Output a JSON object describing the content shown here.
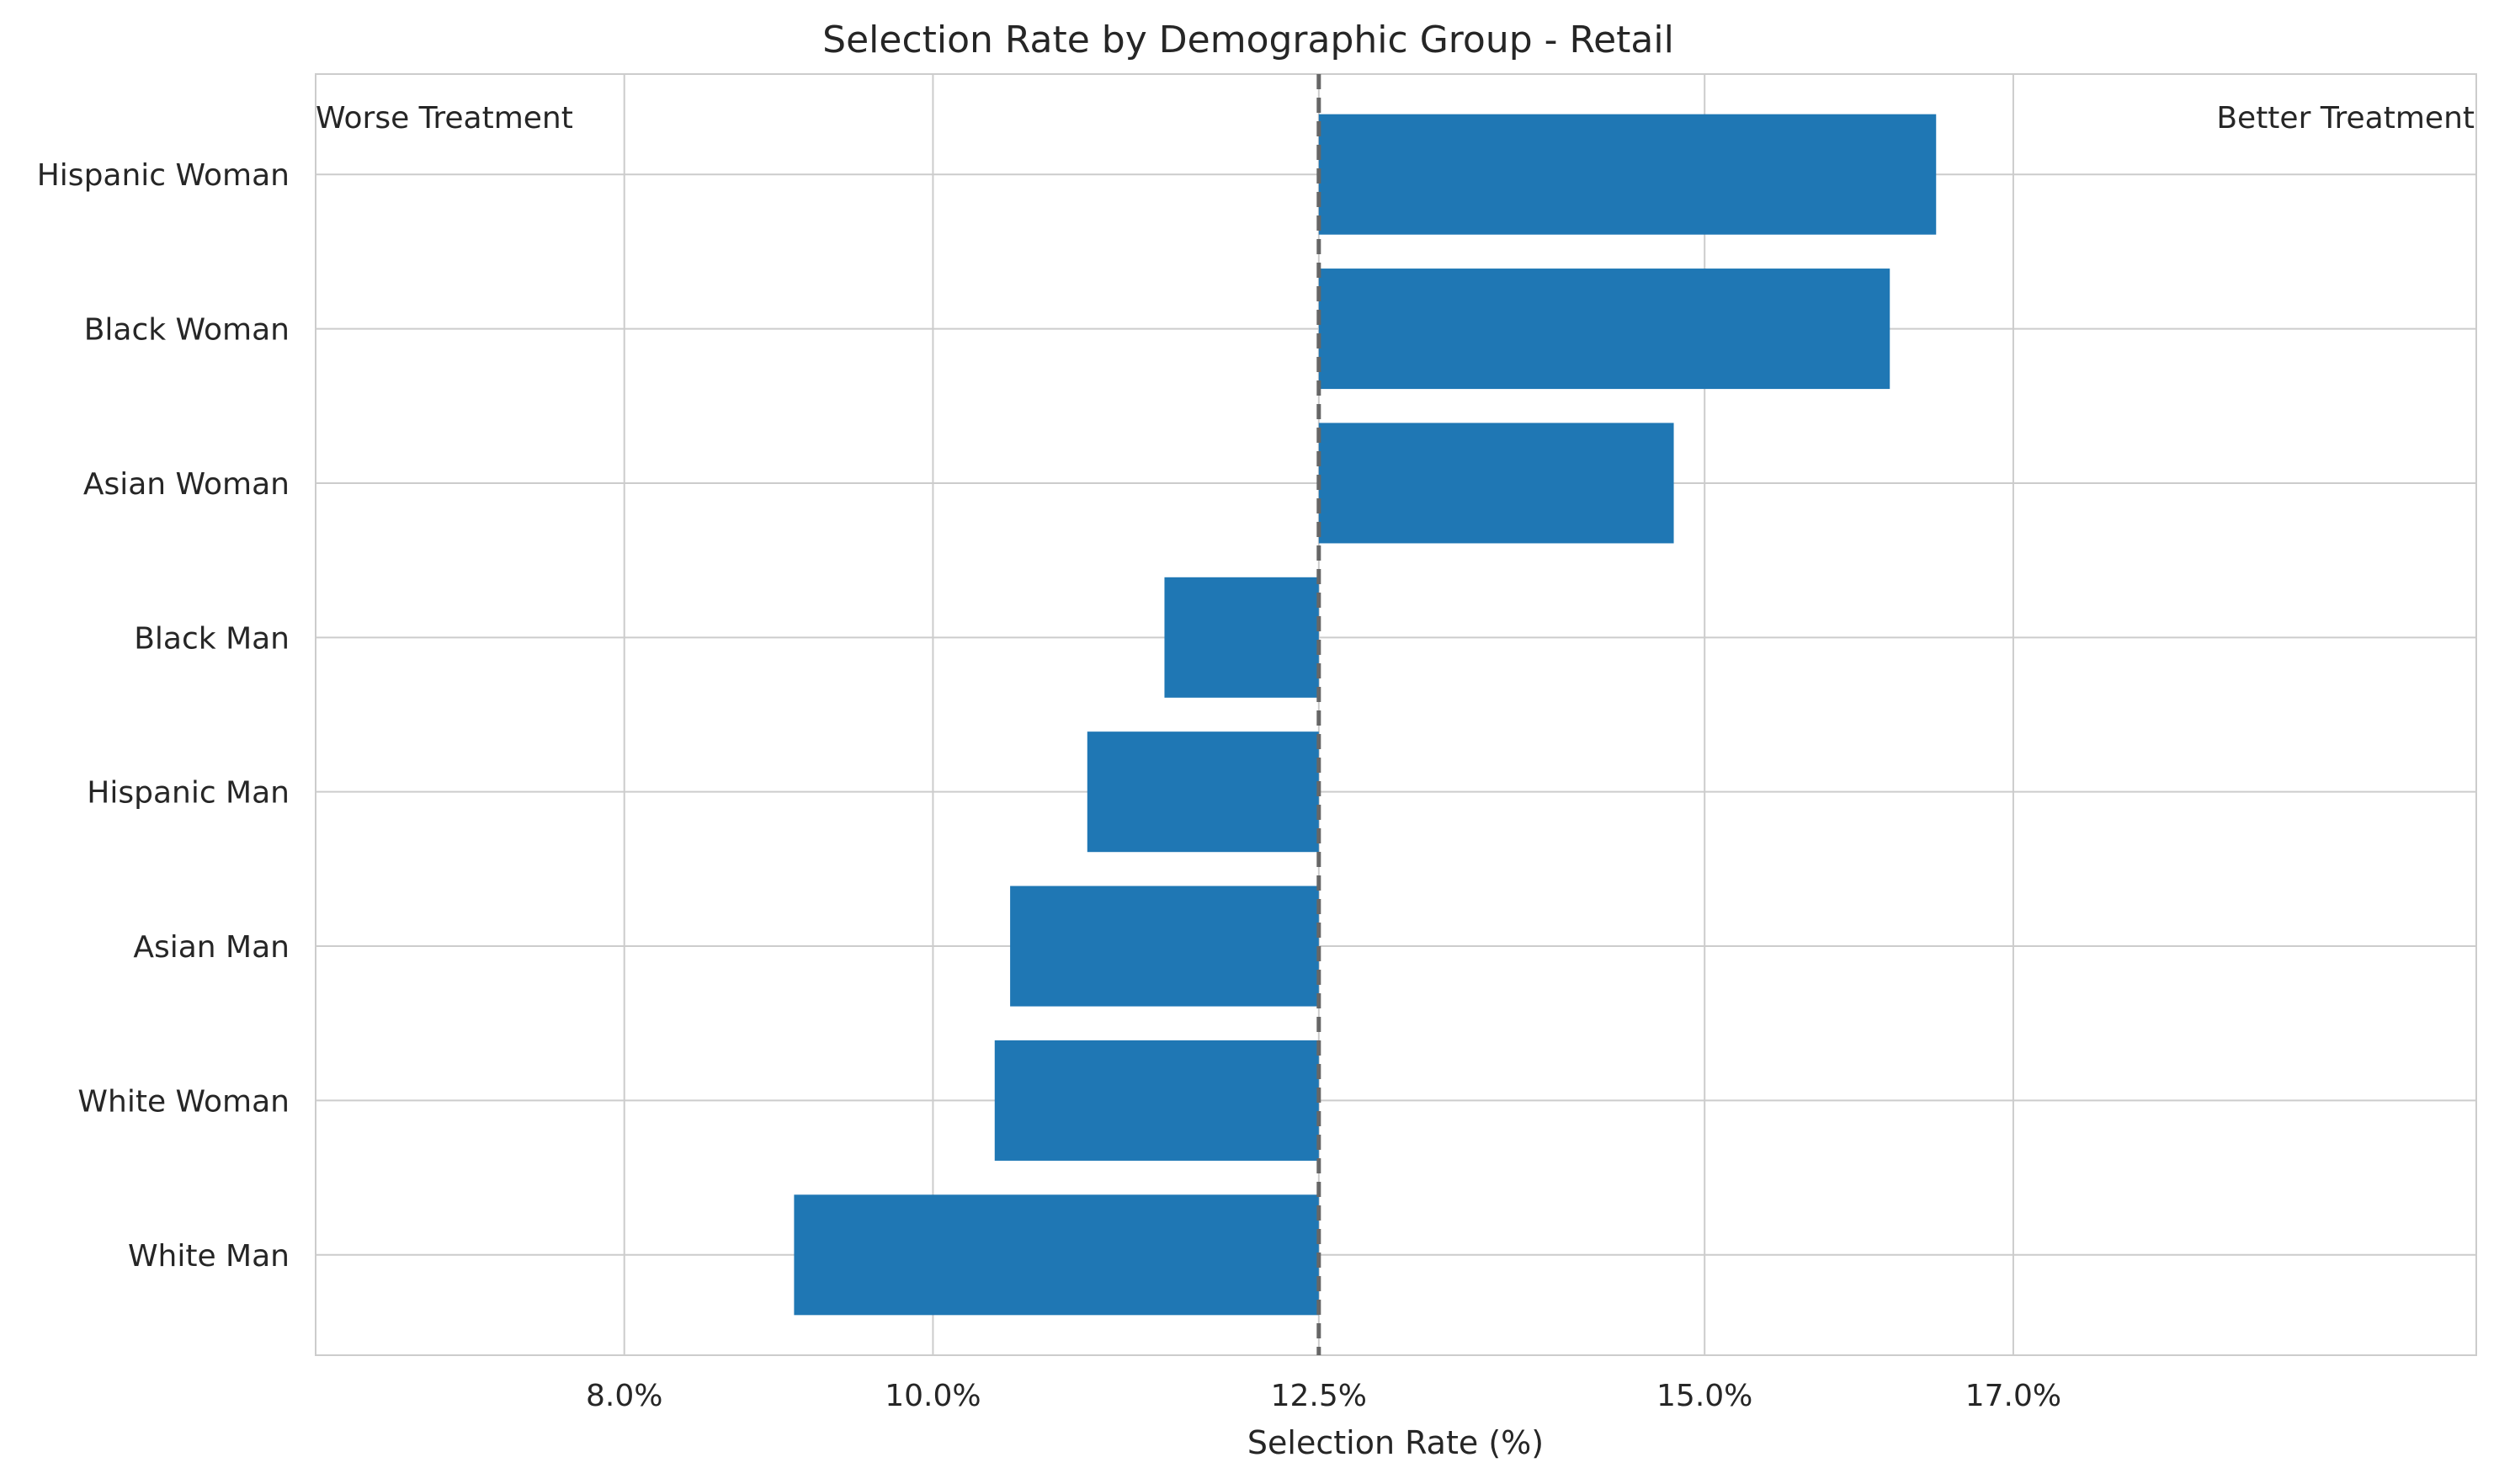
{
  "chart_data": {
    "type": "bar",
    "orientation": "horizontal",
    "title": "Selection Rate by Demographic Group - Retail",
    "xlabel": "Selection Rate (%)",
    "ylabel": "",
    "xlim": [
      6.0,
      20.0
    ],
    "xticks": [
      8.0,
      10.0,
      12.5,
      15.0,
      17.0
    ],
    "xtick_labels": [
      "8.0%",
      "10.0%",
      "12.5%",
      "15.0%",
      "17.0%"
    ],
    "baseline": 12.5,
    "categories": [
      "Hispanic Woman",
      "Black Woman",
      "Asian Woman",
      "Black Man",
      "Hispanic Man",
      "Asian Man",
      "White Woman",
      "White Man"
    ],
    "values": [
      16.5,
      16.2,
      14.8,
      11.5,
      11.0,
      10.5,
      10.4,
      9.1
    ],
    "annotations": {
      "left": "Worse Treatment",
      "right": "Better Treatment"
    },
    "bar_color": "#1f77b4",
    "baseline_color": "#666666",
    "grid": true
  }
}
